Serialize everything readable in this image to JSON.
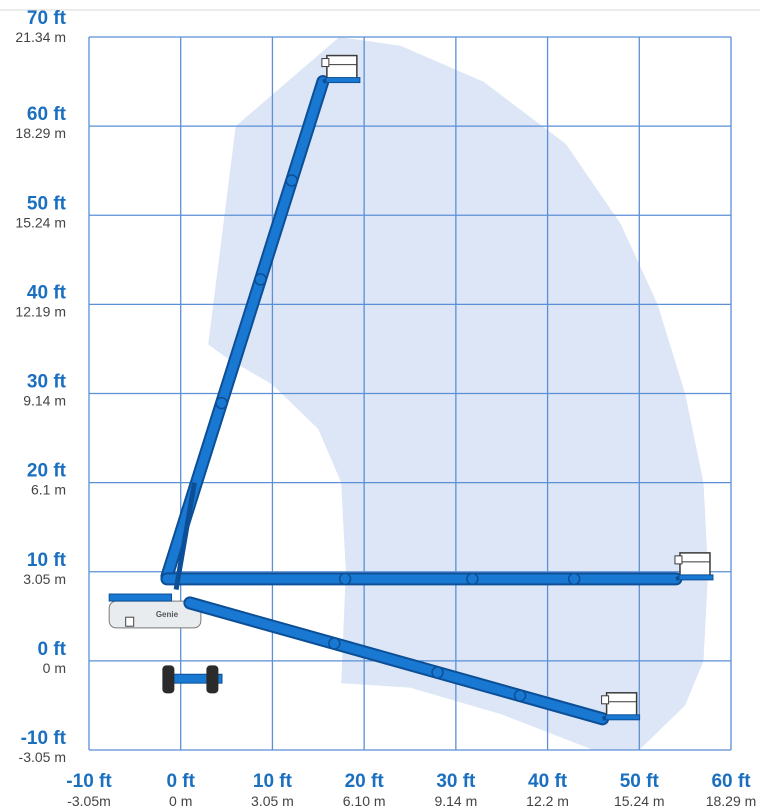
{
  "chart_data": {
    "type": "working-range-diagram",
    "x_ticks": [
      {
        "ft": "-10 ft",
        "m": "-3.05m",
        "value": -10
      },
      {
        "ft": "0 ft",
        "m": "0 m",
        "value": 0
      },
      {
        "ft": "10 ft",
        "m": "3.05 m",
        "value": 10
      },
      {
        "ft": "20 ft",
        "m": "6.10 m",
        "value": 20
      },
      {
        "ft": "30 ft",
        "m": "9.14 m",
        "value": 30
      },
      {
        "ft": "40 ft",
        "m": "12.2 m",
        "value": 40
      },
      {
        "ft": "50 ft",
        "m": "15.24 m",
        "value": 50
      },
      {
        "ft": "60 ft",
        "m": "18.29 m",
        "value": 60
      }
    ],
    "y_ticks": [
      {
        "ft": "70 ft",
        "m": "21.34 m",
        "value": 70
      },
      {
        "ft": "60 ft",
        "m": "18.29 m",
        "value": 60
      },
      {
        "ft": "50 ft",
        "m": "15.24 m",
        "value": 50
      },
      {
        "ft": "40 ft",
        "m": "12.19 m",
        "value": 40
      },
      {
        "ft": "30 ft",
        "m": "9.14 m",
        "value": 30
      },
      {
        "ft": "20 ft",
        "m": "6.1 m",
        "value": 20
      },
      {
        "ft": "10 ft",
        "m": "3.05 m",
        "value": 10
      },
      {
        "ft": "0 ft",
        "m": "0 m",
        "value": 0
      },
      {
        "ft": "-10 ft",
        "m": "-3.05 m",
        "value": -10
      }
    ],
    "x_range": [
      -10,
      60
    ],
    "y_range": [
      -10,
      70
    ],
    "grid": true,
    "envelope_points": [
      [
        3,
        35.5
      ],
      [
        6,
        60
      ],
      [
        17.3,
        70
      ],
      [
        24,
        69
      ],
      [
        33,
        65
      ],
      [
        42,
        58
      ],
      [
        48,
        49
      ],
      [
        52,
        40
      ],
      [
        55,
        30
      ],
      [
        57,
        20
      ],
      [
        57.5,
        10
      ],
      [
        57,
        0
      ],
      [
        55,
        -5
      ],
      [
        50,
        -10
      ],
      [
        45,
        -10
      ],
      [
        35,
        -6
      ],
      [
        25,
        -3
      ],
      [
        17.5,
        -2.5
      ],
      [
        18,
        10
      ],
      [
        17.5,
        20
      ],
      [
        15,
        26
      ],
      [
        10,
        31
      ],
      [
        5,
        34
      ]
    ],
    "boom_positions": [
      {
        "name": "max-height",
        "pivot": [
          -1.5,
          9.5
        ],
        "tip": [
          15.5,
          65
        ]
      },
      {
        "name": "horizontal",
        "pivot": [
          -1.5,
          9.2
        ],
        "tip": [
          54,
          9.2
        ]
      },
      {
        "name": "below-grade",
        "pivot": [
          1,
          6.5
        ],
        "tip": [
          46,
          -6.5
        ]
      }
    ],
    "machine_label": "Genie",
    "colors": {
      "grid": "#5b8fd6",
      "envelope": "#dde6f6",
      "boom": "#1878d2",
      "boom_edge": "#0d4f96",
      "tick_ft": "#1a6fc1",
      "tick_m": "#444444",
      "chassis": "#e9ecef"
    }
  }
}
